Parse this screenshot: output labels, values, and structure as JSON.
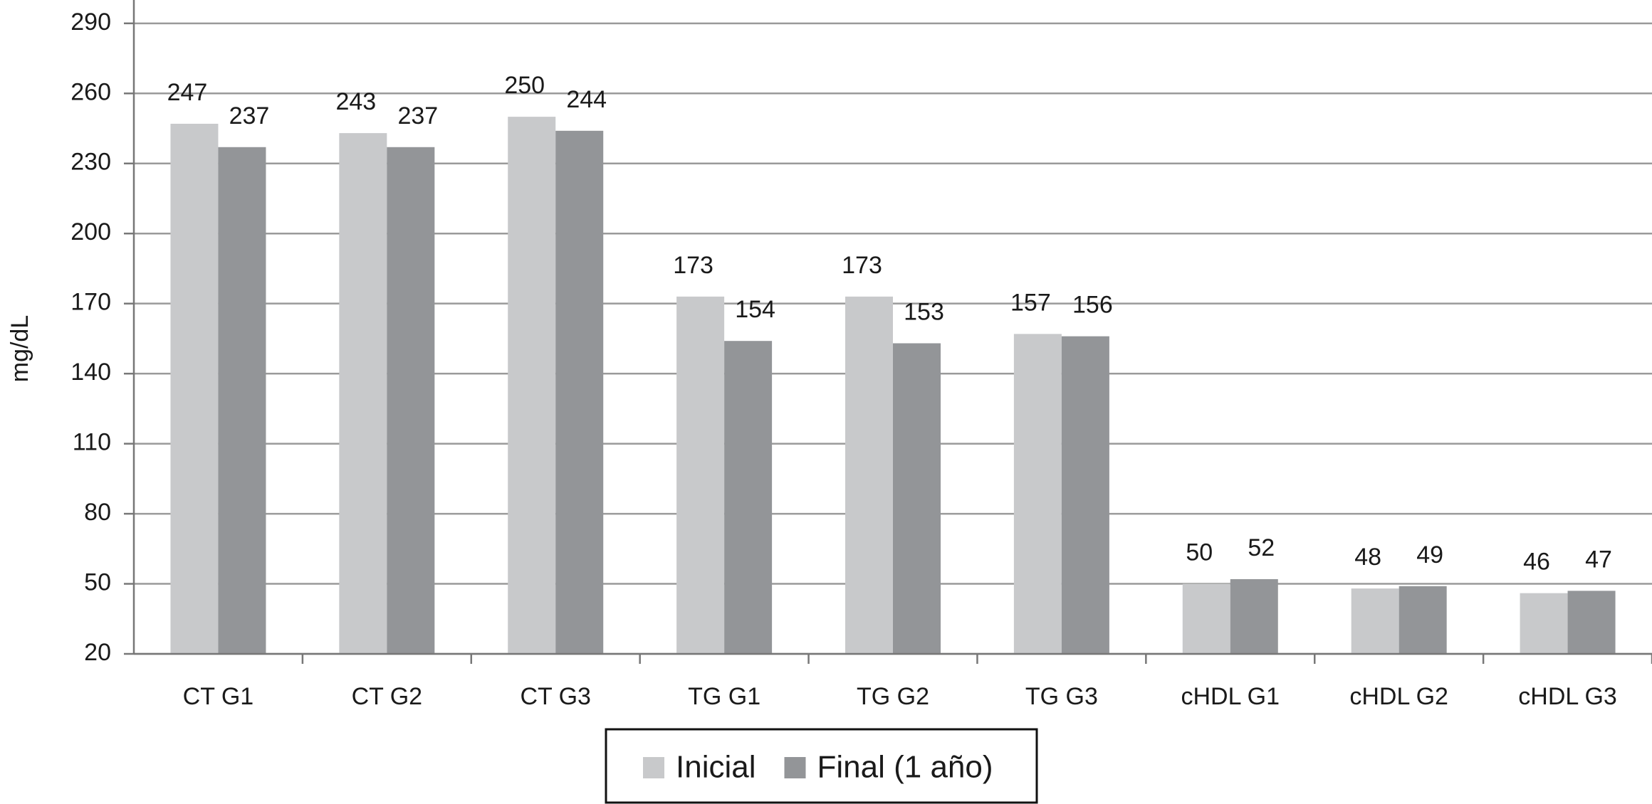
{
  "chart_data": {
    "type": "bar",
    "y_label": "mg/dL",
    "categories": [
      "CT G1",
      "CT G2",
      "CT G3",
      "TG G1",
      "TG G2",
      "TG G3",
      "cHDL G1",
      "cHDL G2",
      "cHDL G3"
    ],
    "series": [
      {
        "name": "Inicial",
        "color": "#c8c9cb",
        "values": [
          247,
          243,
          250,
          173,
          173,
          157,
          50,
          48,
          46
        ]
      },
      {
        "name": "Final (1 año)",
        "color": "#939598",
        "values": [
          237,
          237,
          244,
          154,
          153,
          156,
          52,
          49,
          47
        ]
      }
    ],
    "ylim": [
      20,
      300
    ],
    "yticks": [
      20,
      50,
      80,
      110,
      140,
      170,
      200,
      230,
      260,
      290
    ],
    "grid": true,
    "legend": "bottom"
  }
}
